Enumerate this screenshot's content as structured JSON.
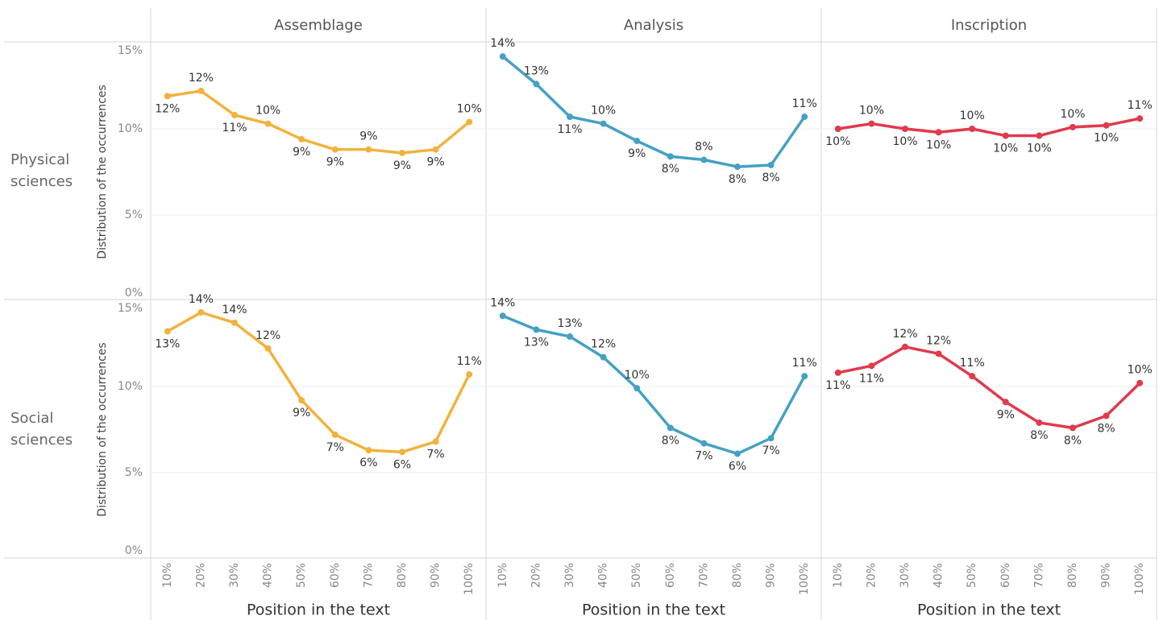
{
  "chart_data": {
    "type": "line",
    "rows": [
      "Physical sciences",
      "Social sciences"
    ],
    "y_label": "Distribution of the occurrences",
    "x_label": "Position in the text",
    "categories": [
      "10%",
      "20%",
      "30%",
      "40%",
      "50%",
      "60%",
      "70%",
      "80%",
      "90%",
      "100%"
    ],
    "ylim": [
      0,
      15
    ],
    "yticks": [
      {
        "value": 0,
        "label": "0%"
      },
      {
        "value": 5,
        "label": "5%"
      },
      {
        "value": 10,
        "label": "10%"
      },
      {
        "value": 15,
        "label": "15%"
      }
    ],
    "grid": true,
    "columns": [
      {
        "name": "Assemblage",
        "color": "#f2b23d",
        "series": [
          {
            "values": [
              11.9,
              12.2,
              10.8,
              10.3,
              9.4,
              8.8,
              8.8,
              8.6,
              8.8,
              10.4
            ],
            "value_labels": [
              "12%",
              "12%",
              "11%",
              "10%",
              "9%",
              "9%",
              "9%",
              "9%",
              "9%",
              "10%"
            ]
          },
          {
            "values": [
              13.2,
              14.3,
              13.7,
              12.2,
              9.2,
              7.2,
              6.3,
              6.2,
              6.8,
              10.7
            ],
            "value_labels": [
              "13%",
              "14%",
              "14%",
              "12%",
              "9%",
              "7%",
              "6%",
              "6%",
              "7%",
              "11%"
            ]
          }
        ]
      },
      {
        "name": "Analysis",
        "color": "#45a1c4",
        "series": [
          {
            "values": [
              14.2,
              12.6,
              10.7,
              10.3,
              9.3,
              8.4,
              8.2,
              7.8,
              7.9,
              10.7
            ],
            "value_labels": [
              "14%",
              "13%",
              "11%",
              "10%",
              "9%",
              "8%",
              "8%",
              "8%",
              "8%",
              "11%"
            ]
          },
          {
            "values": [
              14.1,
              13.3,
              12.9,
              11.7,
              9.9,
              7.6,
              6.7,
              6.1,
              7.0,
              10.6
            ],
            "value_labels": [
              "14%",
              "13%",
              "13%",
              "12%",
              "10%",
              "8%",
              "7%",
              "6%",
              "7%",
              "11%"
            ]
          }
        ]
      },
      {
        "name": "Inscription",
        "color": "#e03a4c",
        "series": [
          {
            "values": [
              10.0,
              10.3,
              10.0,
              9.8,
              10.0,
              9.6,
              9.6,
              10.1,
              10.2,
              10.6
            ],
            "value_labels": [
              "10%",
              "10%",
              "10%",
              "10%",
              "10%",
              "10%",
              "10%",
              "10%",
              "10%",
              "11%"
            ]
          },
          {
            "values": [
              10.8,
              11.2,
              12.3,
              11.9,
              10.6,
              9.1,
              7.9,
              7.6,
              8.3,
              10.2
            ],
            "value_labels": [
              "11%",
              "11%",
              "12%",
              "12%",
              "11%",
              "9%",
              "8%",
              "8%",
              "8%",
              "10%"
            ]
          }
        ]
      }
    ]
  }
}
